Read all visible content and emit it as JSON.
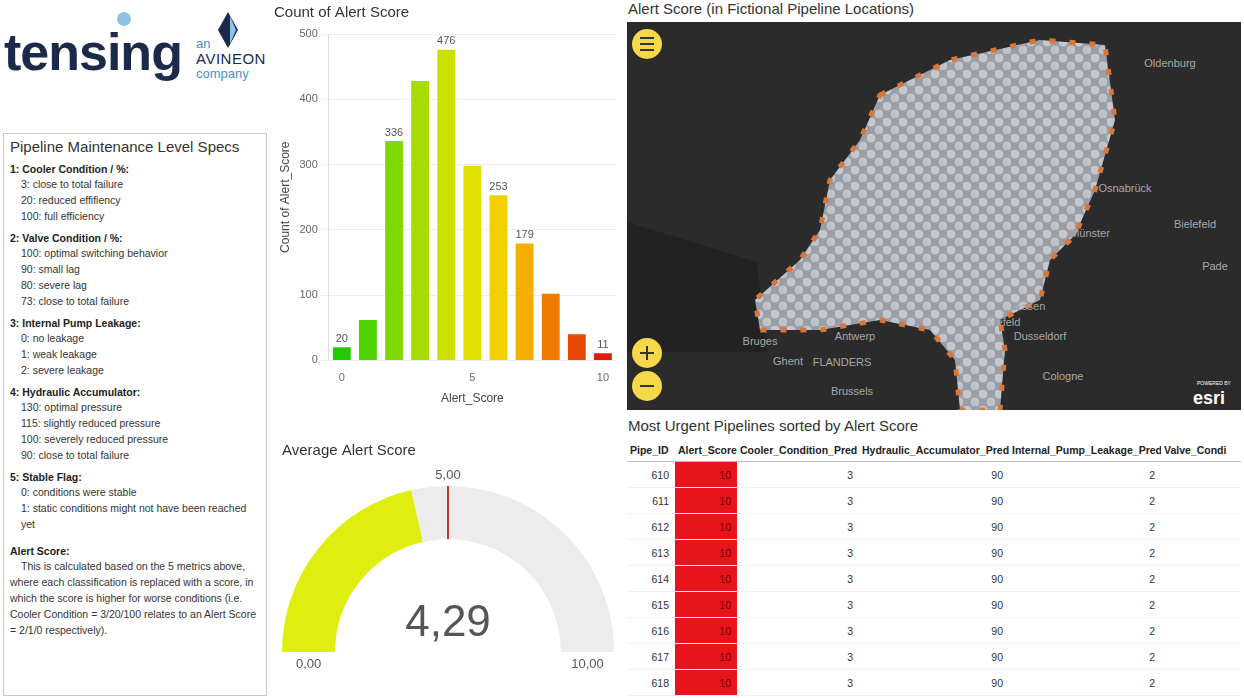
{
  "logo": {
    "name": "tensing",
    "an": "an",
    "brand": "AVINEON",
    "company": "company"
  },
  "specs": {
    "title": "Pipeline Maintenance Level Specs",
    "sections": [
      {
        "heading": "1: Cooler Condition / %:",
        "items": [
          "3: close to total failure",
          "20: reduced effifiency",
          "100: full efficiency"
        ]
      },
      {
        "heading": "2: Valve Condition / %:",
        "items": [
          "100: optimal switching behavior",
          "90: small lag",
          "80: severe lag",
          "73: close to total failure"
        ]
      },
      {
        "heading": "3: Internal Pump Leakage:",
        "items": [
          "0: no leakage",
          "1: weak leakage",
          "2: severe leakage"
        ]
      },
      {
        "heading": "4: Hydraulic Accumulator:",
        "items": [
          "130: optimal pressure",
          "115: slightly reduced pressure",
          "100: severely reduced pressure",
          "90: close to total failure"
        ]
      },
      {
        "heading": "5: Stable Flag:",
        "items": [
          "0: conditions were stable",
          "1: static conditions might not have been reached yet"
        ]
      }
    ],
    "alert_heading": "Alert Score:",
    "alert_text": "This is calculated based on the 5 metrics above, where each classification is replaced with a score, in which the score is higher for worse conditions (i.e. Cooler Condition = 3/20/100 relates to an Alert Score = 2/1/0 respectively)."
  },
  "chart_data": [
    {
      "type": "bar",
      "title": "Count of Alert Score",
      "x_label": "Alert_Score",
      "y_label": "Count of Alert_Score",
      "categories": [
        "0",
        null,
        null,
        null,
        null,
        "5",
        null,
        null,
        null,
        null,
        "10"
      ],
      "values": [
        20,
        62,
        336,
        428,
        476,
        298,
        253,
        179,
        102,
        40,
        11
      ],
      "value_labels": [
        "20",
        null,
        "336",
        null,
        "476",
        null,
        "253",
        "179",
        null,
        null,
        "11"
      ],
      "colors": [
        "#22cc00",
        "#4fd400",
        "#7fd800",
        "#a6dc00",
        "#c9e000",
        "#e2e000",
        "#f2d000",
        "#f5ad00",
        "#f07a00",
        "#e84a00",
        "#e01d0d"
      ],
      "ylim": [
        0,
        500
      ],
      "yticks": [
        0,
        100,
        200,
        300,
        400,
        500
      ],
      "grid": true,
      "data_labels": true
    },
    {
      "type": "gauge",
      "title": "Average Alert Score",
      "value": 4.29,
      "value_label": "4,29",
      "target": {
        "value": 5,
        "label": "5,00"
      },
      "ylim": [
        0,
        10
      ],
      "yticks": [
        {
          "value": 0,
          "label": "0,00"
        },
        {
          "value": 10,
          "label": "10,00"
        }
      ],
      "color": "#dfee0e"
    }
  ],
  "map": {
    "title": "Alert Score (in Fictional Pipeline Locations)",
    "labels": [
      "Oldenburg",
      "Osnabrück",
      "Bielefeld",
      "Münster",
      "Pade",
      "Essen",
      "Krefeld",
      "Dusseldorf",
      "Antwerp",
      "Bruges",
      "Ghent",
      "FLANDERS",
      "Brussels",
      "Cologne"
    ],
    "attribution": {
      "top": "POWERED BY",
      "name": "esri"
    }
  },
  "table": {
    "title": "Most Urgent Pipelines sorted by Alert Score",
    "columns": [
      "Pipe_ID",
      "Alert_Score",
      "Cooler_Condition_Pred",
      "Hydraulic_Accumulator_Pred",
      "Internal_Pump_Leakage_Pred",
      "Valve_Condi"
    ],
    "rows": [
      [
        610,
        10,
        3,
        90,
        2
      ],
      [
        611,
        10,
        3,
        90,
        2
      ],
      [
        612,
        10,
        3,
        90,
        2
      ],
      [
        613,
        10,
        3,
        90,
        2
      ],
      [
        614,
        10,
        3,
        90,
        2
      ],
      [
        615,
        10,
        3,
        90,
        2
      ],
      [
        616,
        10,
        3,
        90,
        2
      ],
      [
        617,
        10,
        3,
        90,
        2
      ],
      [
        618,
        10,
        3,
        90,
        2
      ]
    ]
  }
}
